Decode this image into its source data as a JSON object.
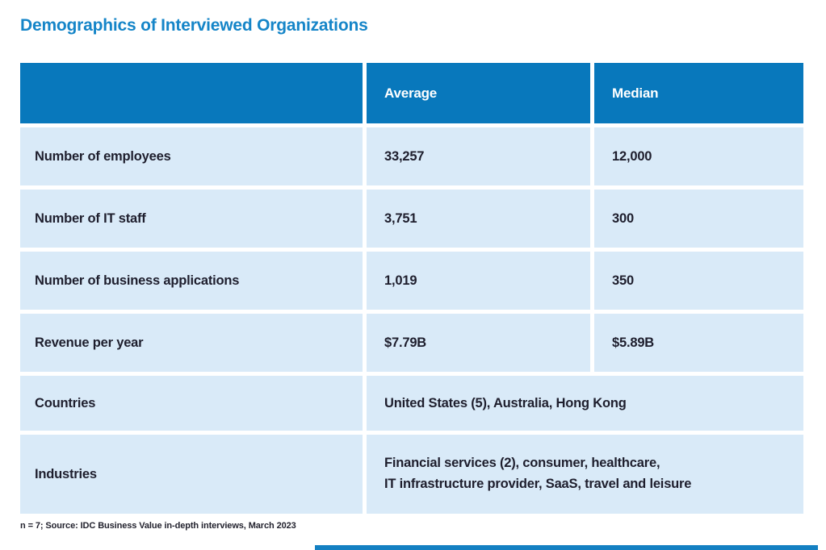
{
  "page": {
    "title": "Demographics of Interviewed Organizations",
    "footnote": "n = 7; Source: IDC Business Value in-depth interviews, March 2023"
  },
  "colors": {
    "title_blue": "#1585c8",
    "header_blue": "#0878bc",
    "row_light_blue": "#d9eaf8",
    "header_text": "#ffffff",
    "cell_text": "#1e1e2d",
    "bottom_bar_blue": "#1480c2"
  },
  "table": {
    "columns": [
      "",
      "Average",
      "Median"
    ],
    "rows": [
      {
        "label": "Number of employees",
        "average": "33,257",
        "median": "12,000"
      },
      {
        "label": "Number of IT staff",
        "average": "3,751",
        "median": "300"
      },
      {
        "label": "Number of business applications",
        "average": "1,019",
        "median": "350"
      },
      {
        "label": "Revenue per year",
        "average": "$7.79B",
        "median": "$5.89B"
      },
      {
        "label": "Countries",
        "value": "United States (5), Australia, Hong Kong"
      },
      {
        "label": "Industries",
        "value": "Financial services (2), consumer, healthcare,\nIT infrastructure provider, SaaS, travel and leisure"
      }
    ]
  }
}
